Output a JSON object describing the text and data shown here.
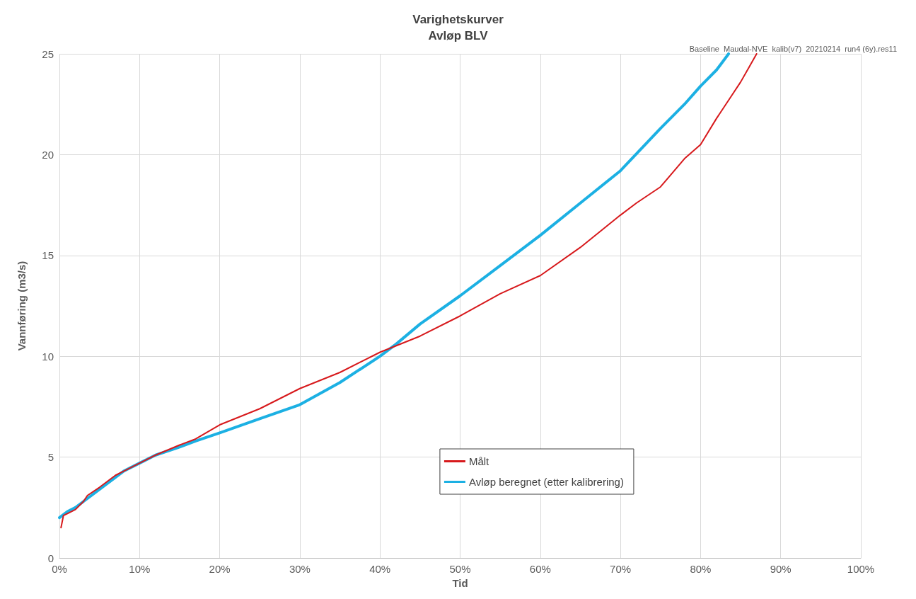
{
  "chart_data": {
    "type": "line",
    "title": "Varighetskurver",
    "subtitle": "Avløp BLV",
    "xlabel": "Tid",
    "ylabel": "Vannføring (m3/s)",
    "annotations": [
      "Baseline  Maudal-NVE  kalib(v7)  20210214  run4 (6y).res11"
    ],
    "series": [
      {
        "name": "Målt",
        "color": "#d7191c",
        "x": [
          0.2,
          0.5,
          1,
          2,
          3,
          3.5,
          5,
          6,
          7,
          8,
          10,
          12,
          15,
          17,
          20,
          25,
          30,
          35,
          40,
          45,
          50,
          55,
          60,
          65,
          70,
          72,
          75,
          78,
          80,
          82,
          84,
          85,
          86,
          87
        ],
        "values": [
          1.5,
          2.1,
          2.2,
          2.4,
          2.8,
          3.1,
          3.5,
          3.8,
          4.1,
          4.3,
          4.7,
          5.1,
          5.6,
          5.9,
          6.6,
          7.4,
          8.4,
          9.2,
          10.2,
          11.0,
          12.0,
          13.1,
          14.0,
          15.4,
          17.0,
          17.6,
          18.4,
          19.8,
          20.5,
          21.8,
          23.0,
          23.6,
          24.3,
          25
        ]
      },
      {
        "name": "Avløp beregnet (etter kalibrering)",
        "color": "#1cb0e3",
        "x": [
          0,
          1,
          2,
          3,
          5,
          7,
          8,
          10,
          12,
          15,
          17,
          20,
          25,
          30,
          35,
          40,
          42,
          45,
          50,
          55,
          60,
          65,
          70,
          75,
          78,
          80,
          82,
          83.5
        ],
        "values": [
          2.0,
          2.3,
          2.5,
          2.8,
          3.4,
          4.0,
          4.3,
          4.7,
          5.1,
          5.5,
          5.8,
          6.2,
          6.9,
          7.6,
          8.7,
          10.0,
          10.6,
          11.6,
          13.0,
          14.5,
          16.0,
          17.6,
          19.2,
          21.3,
          22.5,
          23.4,
          24.2,
          25
        ]
      }
    ],
    "xlim": [
      0,
      100
    ],
    "xticks": [
      {
        "value": 0,
        "label": "0%"
      },
      {
        "value": 10,
        "label": "10%"
      },
      {
        "value": 20,
        "label": "20%"
      },
      {
        "value": 30,
        "label": "30%"
      },
      {
        "value": 40,
        "label": "40%"
      },
      {
        "value": 50,
        "label": "50%"
      },
      {
        "value": 60,
        "label": "60%"
      },
      {
        "value": 70,
        "label": "70%"
      },
      {
        "value": 80,
        "label": "80%"
      },
      {
        "value": 90,
        "label": "90%"
      },
      {
        "value": 100,
        "label": "100%"
      }
    ],
    "ylim": [
      0,
      25
    ],
    "yticks": [
      0,
      5,
      10,
      15,
      20,
      25
    ],
    "grid": true,
    "legend": "bottom",
    "marker": "none",
    "line_style": "solid"
  }
}
